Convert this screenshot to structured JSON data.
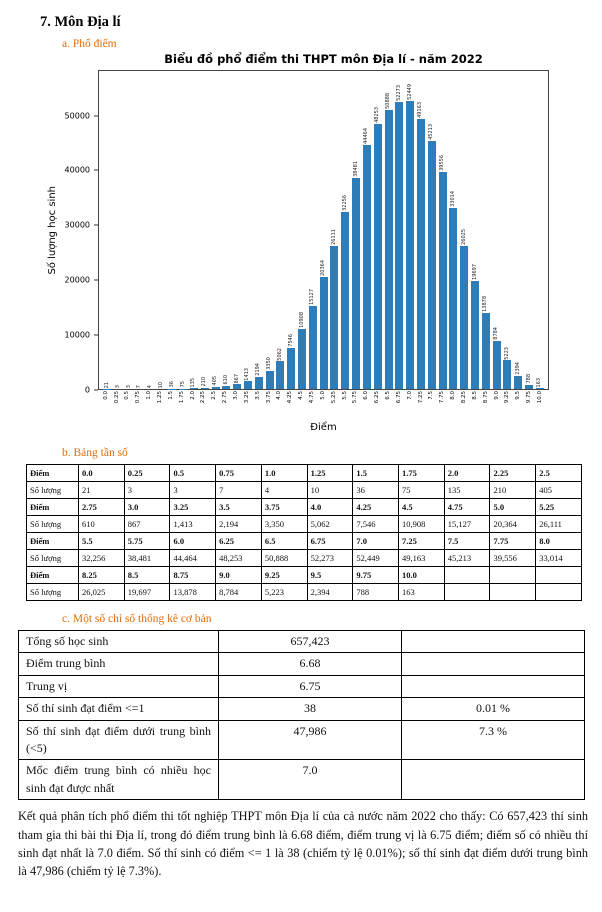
{
  "page": {
    "section_title": "7. Môn Địa lí",
    "sub_a": "a. Phổ điểm",
    "sub_b": "b. Bảng tần số",
    "sub_c": "c. Một số chỉ số thống kê cơ bản",
    "analysis_paragraph": "Kết quả phân tích phổ điểm thi tốt nghiệp THPT môn Địa lí của cả nước năm 2022 cho thấy: Có 657,423 thí sinh tham gia thi bài thi Địa lí, trong đó điểm trung bình là 6.68 điểm, điểm trung vị là 6.75 điểm; điểm số có nhiều thí sinh đạt nhất là 7.0 điểm. Số thí sinh có điểm <= 1 là 38 (chiếm tỷ lệ 0.01%); số thí sinh đạt điểm dưới trung bình là 47,986 (chiếm tỷ lệ 7.3%)."
  },
  "chart_data": {
    "type": "bar",
    "title": "Biểu đồ phổ điểm thi THPT môn Địa lí - năm 2022",
    "xlabel": "Điểm",
    "ylabel": "Số lượng học sinh",
    "ylim": [
      0,
      55000
    ],
    "yticks": [
      0,
      10000,
      20000,
      30000,
      40000,
      50000
    ],
    "grid": false,
    "legend_position": "none",
    "bar_color": "#2d7dbb",
    "categories": [
      "0.0",
      "0.25",
      "0.5",
      "0.75",
      "1.0",
      "1.25",
      "1.5",
      "1.75",
      "2.0",
      "2.25",
      "2.5",
      "2.75",
      "3.0",
      "3.25",
      "3.5",
      "3.75",
      "4.0",
      "4.25",
      "4.5",
      "4.75",
      "5.0",
      "5.25",
      "5.5",
      "5.75",
      "6.0",
      "6.25",
      "6.5",
      "6.75",
      "7.0",
      "7.25",
      "7.5",
      "7.75",
      "8.0",
      "8.25",
      "8.5",
      "8.75",
      "9.0",
      "9.25",
      "9.5",
      "9.75",
      "10.0"
    ],
    "values": [
      21,
      3,
      3,
      7,
      4,
      10,
      36,
      75,
      135,
      210,
      405,
      610,
      867,
      1413,
      2194,
      3350,
      5062,
      7546,
      10908,
      15127,
      20364,
      26111,
      32256,
      38481,
      44464,
      48253,
      50888,
      52273,
      52449,
      49163,
      45213,
      39556,
      33014,
      26025,
      19697,
      13878,
      8784,
      5223,
      2394,
      788,
      163
    ]
  },
  "frequency_table": {
    "row_label_diem": "Điểm",
    "row_label_soluong": "Số lượng",
    "rows": [
      {
        "diem": [
          "0.0",
          "0.25",
          "0.5",
          "0.75",
          "1.0",
          "1.25",
          "1.5",
          "1.75",
          "2.0",
          "2.25",
          "2.5"
        ],
        "soluong": [
          "21",
          "3",
          "3",
          "7",
          "4",
          "10",
          "36",
          "75",
          "135",
          "210",
          "405"
        ]
      },
      {
        "diem": [
          "2.75",
          "3.0",
          "3.25",
          "3.5",
          "3.75",
          "4.0",
          "4.25",
          "4.5",
          "4.75",
          "5.0",
          "5.25"
        ],
        "soluong": [
          "610",
          "867",
          "1,413",
          "2,194",
          "3,350",
          "5,062",
          "7,546",
          "10,908",
          "15,127",
          "20,364",
          "26,111"
        ]
      },
      {
        "diem": [
          "5.5",
          "5.75",
          "6.0",
          "6.25",
          "6.5",
          "6.75",
          "7.0",
          "7.25",
          "7.5",
          "7.75",
          "8.0"
        ],
        "soluong": [
          "32,256",
          "38,481",
          "44,464",
          "48,253",
          "50,888",
          "52,273",
          "52,449",
          "49,163",
          "45,213",
          "39,556",
          "33,014"
        ]
      },
      {
        "diem": [
          "8.25",
          "8.5",
          "8.75",
          "9.0",
          "9.25",
          "9.5",
          "9.75",
          "10.0",
          "",
          "",
          ""
        ],
        "soluong": [
          "26,025",
          "19,697",
          "13,878",
          "8,784",
          "5,223",
          "2,394",
          "788",
          "163",
          "",
          "",
          ""
        ]
      }
    ]
  },
  "stats_table": {
    "rows": [
      {
        "label": "Tổng số học sinh",
        "value": "657,423",
        "percent": ""
      },
      {
        "label": "Điểm trung bình",
        "value": "6.68",
        "percent": ""
      },
      {
        "label": "Trung vị",
        "value": "6.75",
        "percent": ""
      },
      {
        "label": "Số thí sinh đạt điểm <=1",
        "value": "38",
        "percent": "0.01 %"
      },
      {
        "label": "Số thí sinh đạt điểm dưới trung bình (<5)",
        "value": "47,986",
        "percent": "7.3 %"
      },
      {
        "label": "Mốc điểm trung bình có nhiều học sinh đạt được nhất",
        "value": "7.0",
        "percent": ""
      }
    ]
  }
}
